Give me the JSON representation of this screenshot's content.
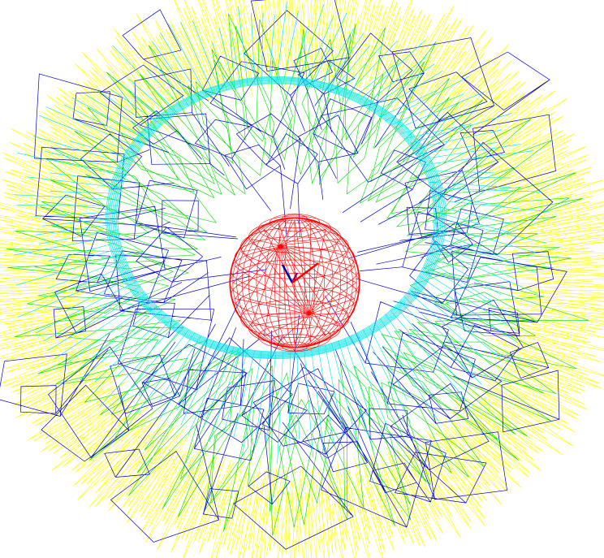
{
  "scene": {
    "background": "#ffffff",
    "layers": [
      {
        "name": "outer-spike-ring",
        "color": "#ffff00"
      },
      {
        "name": "mid-green-spikes",
        "color": "#00e000"
      },
      {
        "name": "blue-square-frames",
        "color": "#0000cc"
      },
      {
        "name": "cyan-torus-band",
        "color": "#00e5e5"
      },
      {
        "name": "wireframe-sphere",
        "color": "#ff0000"
      }
    ],
    "sphere_axes": [
      "#0000aa",
      "#990066",
      "#ff0000"
    ]
  }
}
